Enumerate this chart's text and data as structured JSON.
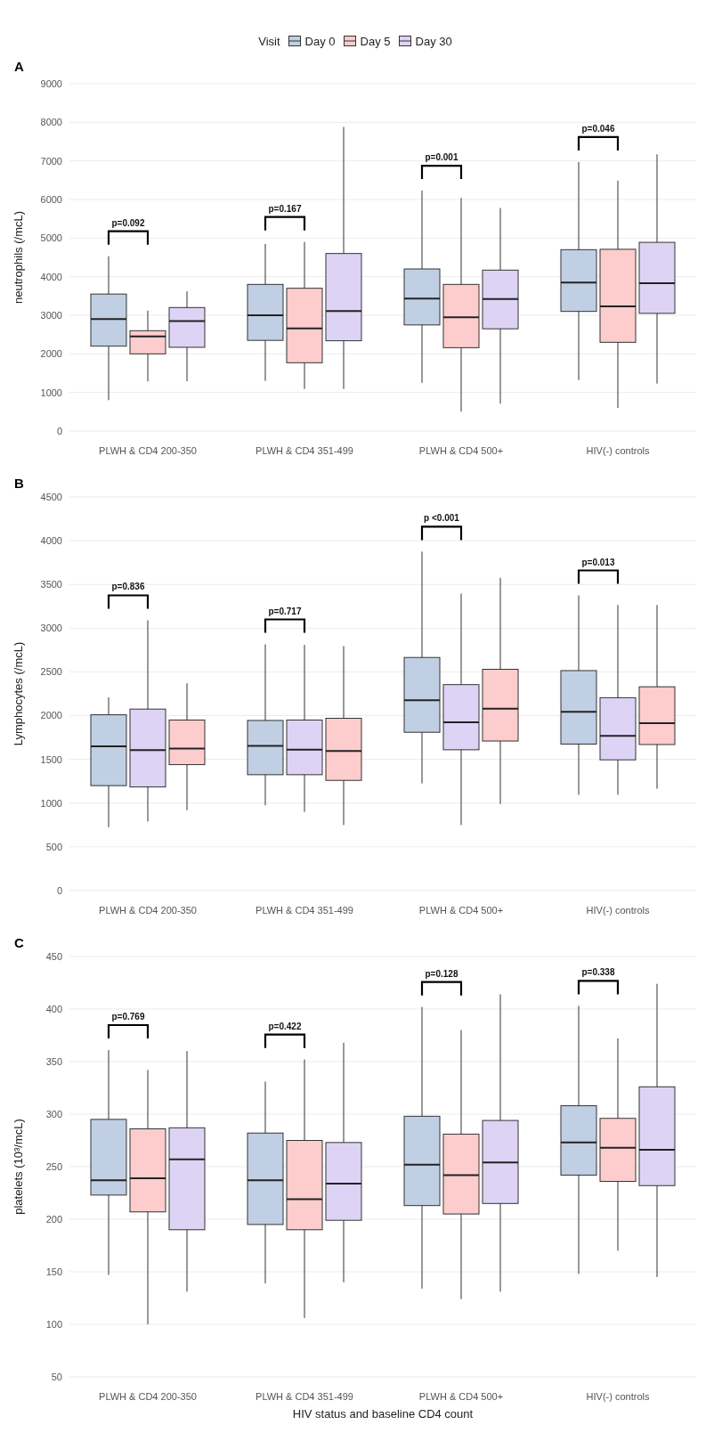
{
  "chart_data": [
    {
      "type": "box",
      "title": "A",
      "ylabel": "neutrophils (/mcL)",
      "legend_title": "Visit",
      "legend": "top",
      "grid": "y",
      "categories": [
        "PLWH & CD4 200-350",
        "PLWH & CD4 351-499",
        "PLWH & CD4 500+",
        "HIV(-) controls"
      ],
      "ylim": [
        0,
        9000
      ],
      "yticks": [
        0,
        1000,
        2000,
        3000,
        4000,
        5000,
        6000,
        7000,
        8000,
        9000
      ],
      "series": [
        {
          "name": "Day 0",
          "color": "#c0cfe4",
          "boxes": [
            {
              "low": 800,
              "q1": 2200,
              "median": 2900,
              "q3": 3550,
              "high": 4530
            },
            {
              "low": 1300,
              "q1": 2350,
              "median": 3000,
              "q3": 3800,
              "high": 4850
            },
            {
              "low": 1250,
              "q1": 2750,
              "median": 3430,
              "q3": 4200,
              "high": 6230
            },
            {
              "low": 1320,
              "q1": 3100,
              "median": 3850,
              "q3": 4700,
              "high": 6970
            }
          ]
        },
        {
          "name": "Day 5",
          "color": "#fdcccc",
          "boxes": [
            {
              "low": 1290,
              "q1": 2000,
              "median": 2450,
              "q3": 2600,
              "high": 3120
            },
            {
              "low": 1090,
              "q1": 1770,
              "median": 2660,
              "q3": 3700,
              "high": 4900
            },
            {
              "low": 500,
              "q1": 2160,
              "median": 2950,
              "q3": 3800,
              "high": 6040
            },
            {
              "low": 600,
              "q1": 2300,
              "median": 3230,
              "q3": 4710,
              "high": 6490
            }
          ]
        },
        {
          "name": "Day 30",
          "color": "#ddd3f5",
          "boxes": [
            {
              "low": 1290,
              "q1": 2170,
              "median": 2850,
              "q3": 3200,
              "high": 3620
            },
            {
              "low": 1090,
              "q1": 2340,
              "median": 3110,
              "q3": 4600,
              "high": 7880
            },
            {
              "low": 710,
              "q1": 2650,
              "median": 3420,
              "q3": 4170,
              "high": 5780
            },
            {
              "low": 1230,
              "q1": 3050,
              "median": 3830,
              "q3": 4890,
              "high": 7170
            }
          ]
        }
      ],
      "annotations": [
        "p=0.092",
        "p=0.167",
        "p=0.001",
        "p=0.046"
      ]
    },
    {
      "type": "box",
      "title": "B",
      "ylabel": "Lymphocytes (/mcL)",
      "grid": "y",
      "categories": [
        "PLWH & CD4 200-350",
        "PLWH & CD4 351-499",
        "PLWH & CD4 500+",
        "HIV(-) controls"
      ],
      "ylim": [
        0,
        4500
      ],
      "yticks": [
        0,
        500,
        1000,
        1500,
        2000,
        2500,
        3000,
        3500,
        4000,
        4500
      ],
      "series": [
        {
          "color": "#c0cfe4",
          "boxes": [
            {
              "low": 725,
              "q1": 1200,
              "median": 1650,
              "q3": 2010,
              "high": 2210
            },
            {
              "low": 975,
              "q1": 1325,
              "median": 1655,
              "q3": 1945,
              "high": 2815
            },
            {
              "low": 1225,
              "q1": 1810,
              "median": 2175,
              "q3": 2665,
              "high": 3875
            },
            {
              "low": 1095,
              "q1": 1675,
              "median": 2045,
              "q3": 2515,
              "high": 3375
            }
          ]
        },
        {
          "color": "#ddd3f5",
          "boxes": [
            {
              "low": 790,
              "q1": 1185,
              "median": 1605,
              "q3": 2075,
              "high": 3090
            },
            {
              "low": 900,
              "q1": 1325,
              "median": 1610,
              "q3": 1950,
              "high": 2810
            },
            {
              "low": 750,
              "q1": 1610,
              "median": 1925,
              "q3": 2355,
              "high": 3395
            },
            {
              "low": 1095,
              "q1": 1495,
              "median": 1770,
              "q3": 2205,
              "high": 3265
            }
          ]
        },
        {
          "color": "#fdcccc",
          "boxes": [
            {
              "low": 920,
              "q1": 1440,
              "median": 1625,
              "q3": 1950,
              "high": 2370
            },
            {
              "low": 750,
              "q1": 1260,
              "median": 1595,
              "q3": 1970,
              "high": 2795
            },
            {
              "low": 990,
              "q1": 1710,
              "median": 2080,
              "q3": 2530,
              "high": 3575
            },
            {
              "low": 1165,
              "q1": 1670,
              "median": 1915,
              "q3": 2330,
              "high": 3265
            }
          ]
        }
      ],
      "annotations": [
        "p=0.836",
        "p=0.717",
        "p <0.001",
        "p=0.013"
      ]
    },
    {
      "type": "box",
      "title": "C",
      "ylabel": "platelets (10³/mcL)",
      "xlabel": "HIV status and baseline CD4 count",
      "grid": "y",
      "categories": [
        "PLWH & CD4 200-350",
        "PLWH & CD4 351-499",
        "PLWH & CD4 500+",
        "HIV(-) controls"
      ],
      "ylim": [
        50,
        450
      ],
      "yticks": [
        50,
        100,
        150,
        200,
        250,
        300,
        350,
        400,
        450
      ],
      "series": [
        {
          "color": "#c0cfe4",
          "boxes": [
            {
              "low": 147,
              "q1": 223,
              "median": 237,
              "q3": 295,
              "high": 361
            },
            {
              "low": 139,
              "q1": 195,
              "median": 237,
              "q3": 282,
              "high": 331
            },
            {
              "low": 134,
              "q1": 213,
              "median": 252,
              "q3": 298,
              "high": 402
            },
            {
              "low": 148,
              "q1": 242,
              "median": 273,
              "q3": 308,
              "high": 403
            }
          ]
        },
        {
          "color": "#fdcccc",
          "boxes": [
            {
              "low": 100,
              "q1": 207,
              "median": 239,
              "q3": 286,
              "high": 342
            },
            {
              "low": 106,
              "q1": 190,
              "median": 219,
              "q3": 275,
              "high": 352
            },
            {
              "low": 124,
              "q1": 205,
              "median": 242,
              "q3": 281,
              "high": 380
            },
            {
              "low": 170,
              "q1": 236,
              "median": 268,
              "q3": 296,
              "high": 372
            }
          ]
        },
        {
          "color": "#ddd3f5",
          "boxes": [
            {
              "low": 131,
              "q1": 190,
              "median": 257,
              "q3": 287,
              "high": 360
            },
            {
              "low": 140,
              "q1": 199,
              "median": 234,
              "q3": 273,
              "high": 368
            },
            {
              "low": 131,
              "q1": 215,
              "median": 254,
              "q3": 294,
              "high": 414
            },
            {
              "low": 145,
              "q1": 232,
              "median": 266,
              "q3": 326,
              "high": 424
            }
          ]
        }
      ],
      "annotations": [
        "p=0.769",
        "p=0.422",
        "p=0.128",
        "p=0.338"
      ]
    }
  ]
}
